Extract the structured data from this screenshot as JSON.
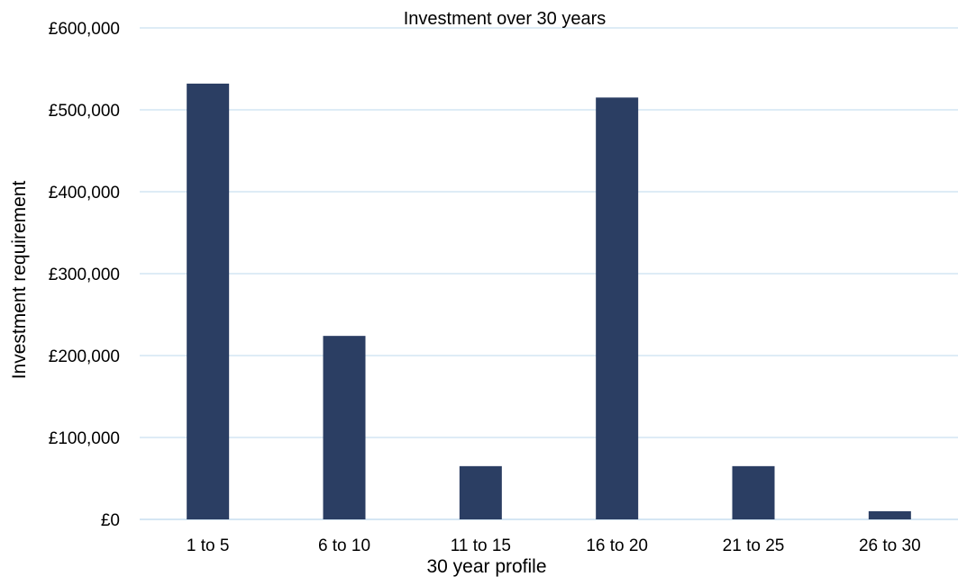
{
  "chart_data": {
    "type": "bar",
    "title": "Investment over 30 years",
    "xlabel": "30 year profile",
    "ylabel": "Investment requirement",
    "categories": [
      "1 to 5",
      "6 to 10",
      "11 to 15",
      "16 to 20",
      "21 to 25",
      "26 to 30"
    ],
    "series": [
      {
        "values": [
          532000,
          224000,
          65000,
          515000,
          65000,
          10000
        ]
      }
    ],
    "ylim": [
      0,
      600000
    ],
    "yticks": [
      {
        "value": 0,
        "label": "£0"
      },
      {
        "value": 100000,
        "label": "£100,000"
      },
      {
        "value": 200000,
        "label": "£200,000"
      },
      {
        "value": 300000,
        "label": "£300,000"
      },
      {
        "value": 400000,
        "label": "£400,000"
      },
      {
        "value": 500000,
        "label": "£500,000"
      },
      {
        "value": 600000,
        "label": "£600,000"
      }
    ],
    "grid": true,
    "legend": "none",
    "colors": {
      "bar": "#2b3e63",
      "grid": "#bcd8ec"
    }
  }
}
